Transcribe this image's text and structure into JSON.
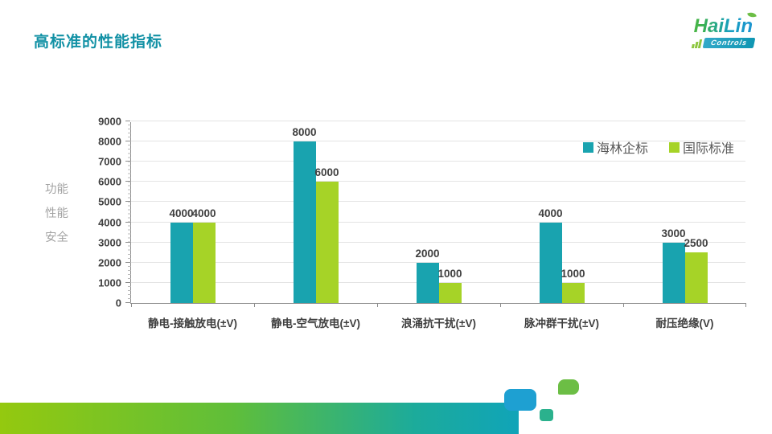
{
  "slide": {
    "title": "高标准的性能指标",
    "logo": {
      "part1": "Hai",
      "part2": "Lin",
      "sub": "Controls"
    }
  },
  "chart_data": {
    "type": "bar",
    "title": "",
    "categories": [
      "静电-接触放电(±V)",
      "静电-空气放电(±V)",
      "浪涌抗干扰(±V)",
      "脉冲群干扰(±V)",
      "耐压绝缘(V)"
    ],
    "series": [
      {
        "name": "海林企标",
        "color": "#19a3af",
        "values": [
          4000,
          8000,
          2000,
          4000,
          3000
        ]
      },
      {
        "name": "国际标准",
        "color": "#a6d327",
        "values": [
          4000,
          6000,
          1000,
          1000,
          2500
        ]
      }
    ],
    "ylabel_lines": [
      "功能",
      "性能",
      "安全"
    ],
    "ylim": [
      0,
      9000
    ],
    "ytick_step": 1000,
    "grid": true,
    "legend_position": "top-right",
    "bar_labels_shown": true
  },
  "colors": {
    "title": "#1291A5",
    "band_left": "#94c90f",
    "band_right": "#10a4b8"
  }
}
